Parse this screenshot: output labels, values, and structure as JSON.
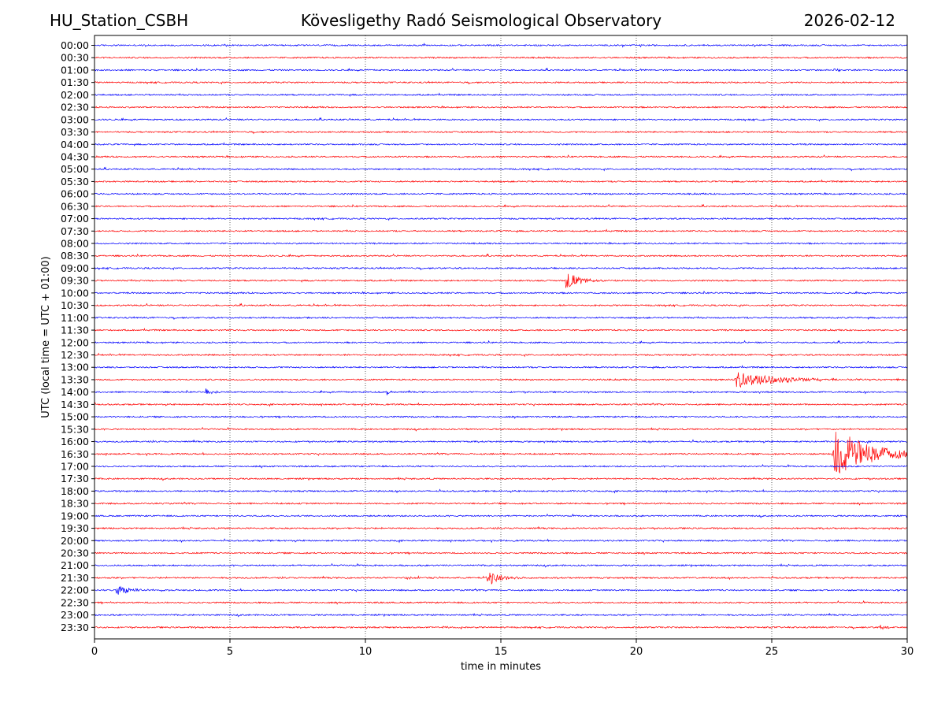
{
  "header": {
    "station": "HU_Station_CSBH",
    "title": "Kövesligethy Radó Seismological Observatory",
    "date": "2026-02-12"
  },
  "chart_data": {
    "type": "line",
    "xlabel": "time in minutes",
    "ylabel": "UTC (local time = UTC + 01:00)",
    "xlim": [
      0,
      30
    ],
    "xticks": [
      0,
      5,
      10,
      15,
      20,
      25,
      30
    ],
    "grid": "vertical dotted lines at each x tick",
    "row_labels": [
      "00:00",
      "00:30",
      "01:00",
      "01:30",
      "02:00",
      "02:30",
      "03:00",
      "03:30",
      "04:00",
      "04:30",
      "05:00",
      "05:30",
      "06:00",
      "06:30",
      "07:00",
      "07:30",
      "08:00",
      "08:30",
      "09:00",
      "09:30",
      "10:00",
      "10:30",
      "11:00",
      "11:30",
      "12:00",
      "12:30",
      "13:00",
      "13:30",
      "14:00",
      "14:30",
      "15:00",
      "15:30",
      "16:00",
      "16:30",
      "17:00",
      "17:30",
      "18:00",
      "18:30",
      "19:00",
      "19:30",
      "20:00",
      "20:30",
      "21:00",
      "21:30",
      "22:00",
      "22:30",
      "23:00",
      "23:30"
    ],
    "colors": {
      "even_rows": "#0000ff",
      "odd_rows": "#ff0000"
    },
    "events": [
      {
        "row": "01:00",
        "minute": 27.3,
        "amplitude": 0.5,
        "duration": 0.3
      },
      {
        "row": "09:30",
        "minute": 17.4,
        "amplitude": 1.4,
        "duration": 0.9
      },
      {
        "row": "13:30",
        "minute": 23.7,
        "amplitude": 1.0,
        "duration": 3.5
      },
      {
        "row": "14:00",
        "minute": 4.1,
        "amplitude": 0.5,
        "duration": 0.5
      },
      {
        "row": "14:00",
        "minute": 10.8,
        "amplitude": 0.4,
        "duration": 0.2
      },
      {
        "row": "16:30",
        "minute": 27.3,
        "amplitude": 3.7,
        "duration": 2.7
      },
      {
        "row": "21:30",
        "minute": 14.5,
        "amplitude": 1.2,
        "duration": 1.0
      },
      {
        "row": "21:30",
        "minute": 11.5,
        "amplitude": 0.3,
        "duration": 0.4
      },
      {
        "row": "22:00",
        "minute": 0.8,
        "amplitude": 0.6,
        "duration": 1.2
      },
      {
        "row": "23:30",
        "minute": 29.0,
        "amplitude": 0.4,
        "duration": 0.4
      },
      {
        "row": "23:30",
        "minute": 12.8,
        "amplitude": 0.3,
        "duration": 0.3
      }
    ]
  }
}
